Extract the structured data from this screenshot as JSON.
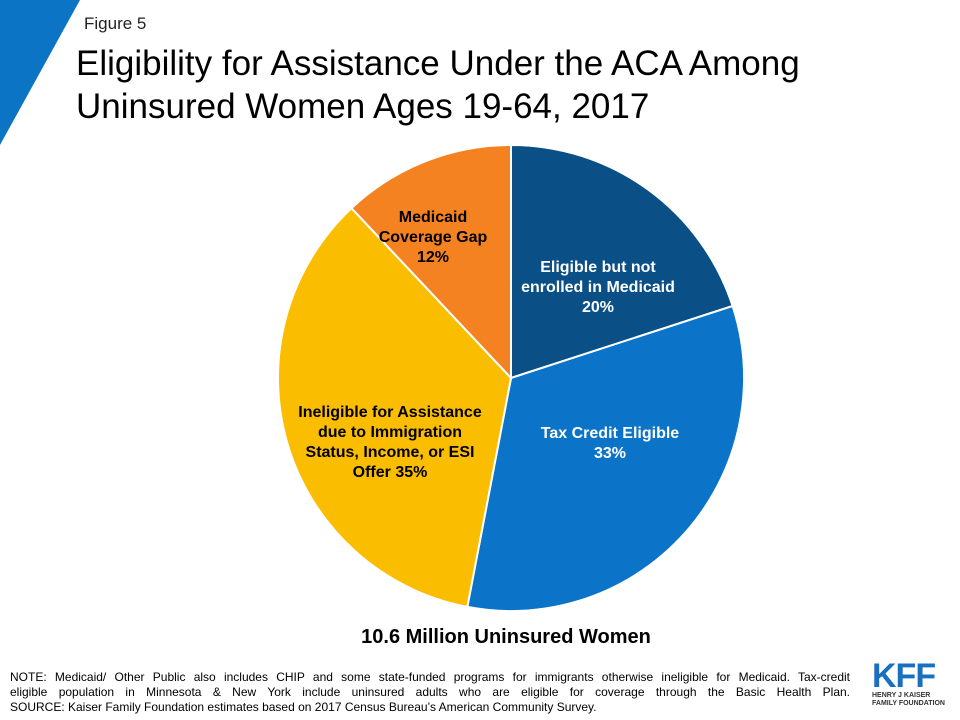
{
  "figure_label": "Figure 5",
  "title_line1": "Eligibility for Assistance Under the ACA Among",
  "title_line2": "Uninsured Women Ages 19-64, 2017",
  "subtitle": "10.6 Million Uninsured Women",
  "notes": {
    "line1": "NOTE: Medicaid/ Other Public also includes CHIP and some state-funded programs for immigrants otherwise ineligible for Medicaid. Tax-credit",
    "line2": "eligible population in Minnesota & New York include uninsured adults who are eligible for coverage through the Basic Health Plan.",
    "line3": "SOURCE: Kaiser Family Foundation estimates based on 2017 Census Bureau’s American Community Survey."
  },
  "logo": {
    "text": "KFF",
    "org_line1": "HENRY J KAISER",
    "org_line2": "FAMILY FOUNDATION"
  },
  "colors": {
    "corner_accent": "#0b74c4"
  },
  "chart_data": {
    "type": "pie",
    "start_angle_deg": 0,
    "direction": "clockwise",
    "slices": [
      {
        "label_lines": [
          "Eligible but not",
          "enrolled in Medicaid",
          "20%"
        ],
        "value": 20,
        "color": "#0b4f87",
        "label_color": "#ffffff"
      },
      {
        "label_lines": [
          "Tax Credit Eligible",
          "33%"
        ],
        "value": 33,
        "color": "#0b74c8",
        "label_color": "#ffffff"
      },
      {
        "label_lines": [
          "Ineligible for Assistance",
          "due to Immigration",
          "Status, Income, or ESI",
          "Offer 35%"
        ],
        "value": 35,
        "color": "#fbbd00",
        "label_color": "#000000"
      },
      {
        "label_lines": [
          "Medicaid",
          "Coverage Gap",
          "12%"
        ],
        "value": 12,
        "color": "#f58220",
        "label_color": "#000000"
      }
    ]
  }
}
